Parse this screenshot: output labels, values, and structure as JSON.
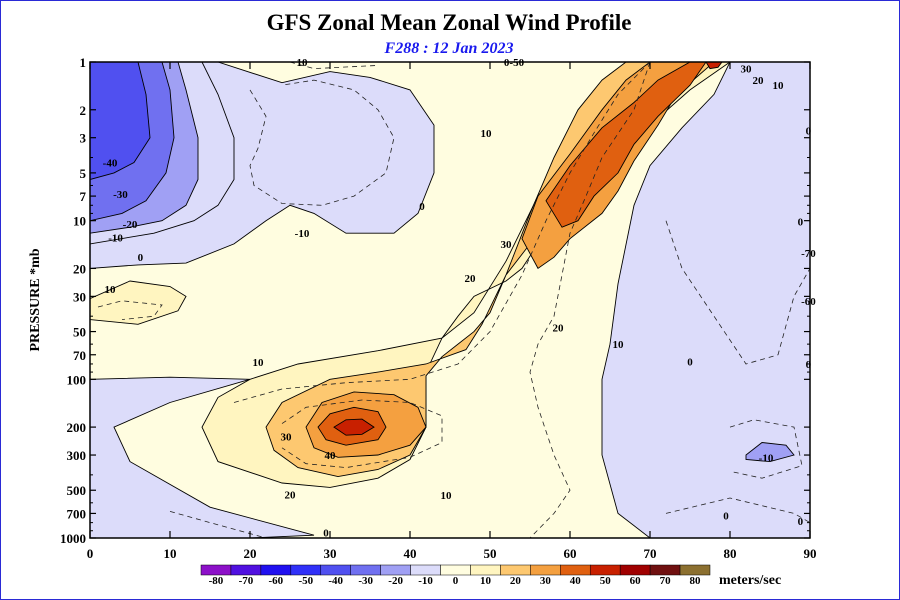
{
  "chart_data": {
    "type": "heatmap",
    "title": "GFS Zonal Mean Zonal Wind Profile",
    "subtitle": "F288 : 12 Jan 2023",
    "ylabel": "PRESSURE *mb",
    "xlim": [
      0,
      90
    ],
    "ylim": [
      1000,
      1
    ],
    "y_scale": "log",
    "x_ticks": [
      0,
      10,
      20,
      30,
      40,
      50,
      60,
      70,
      80,
      90
    ],
    "y_ticks": [
      1,
      2,
      3,
      5,
      7,
      10,
      20,
      30,
      50,
      70,
      100,
      200,
      300,
      500,
      700,
      1000
    ],
    "colorbar": {
      "unit": "meters/sec",
      "levels": [
        -80,
        -70,
        -60,
        -50,
        -40,
        -30,
        -20,
        -10,
        0,
        10,
        20,
        30,
        40,
        50,
        60,
        70,
        80
      ],
      "colors": [
        "#8c10c8",
        "#5010e0",
        "#2010f0",
        "#3030f8",
        "#5050f0",
        "#7070f0",
        "#a0a0f4",
        "#dcdcfa",
        "#fffde0",
        "#fff5c0",
        "#fdc870",
        "#f4a040",
        "#e06010",
        "#c82000",
        "#a00000",
        "#701010",
        "#8c7030"
      ]
    },
    "contour_labels": [
      {
        "text": "10",
        "x": 26.5,
        "y": 1
      },
      {
        "text": "0-50",
        "x": 53,
        "y": 1
      },
      {
        "text": "-40",
        "x": 2.5,
        "y": 4.3
      },
      {
        "text": "-30",
        "x": 3.8,
        "y": 6.8
      },
      {
        "text": "-20",
        "x": 5,
        "y": 10.5
      },
      {
        "text": "-10",
        "x": 3.2,
        "y": 12.8
      },
      {
        "text": "-10",
        "x": 26.5,
        "y": 12
      },
      {
        "text": "0",
        "x": 6.3,
        "y": 17
      },
      {
        "text": "0",
        "x": 41.5,
        "y": 8.1
      },
      {
        "text": "10",
        "x": 49.5,
        "y": 2.8
      },
      {
        "text": "10",
        "x": 2.5,
        "y": 27
      },
      {
        "text": "10",
        "x": 21,
        "y": 78
      },
      {
        "text": "10",
        "x": 66,
        "y": 60
      },
      {
        "text": "10",
        "x": 44.5,
        "y": 535
      },
      {
        "text": "20",
        "x": 47.5,
        "y": 23
      },
      {
        "text": "20",
        "x": 58.5,
        "y": 47
      },
      {
        "text": "20",
        "x": 25,
        "y": 530
      },
      {
        "text": "20",
        "x": 83.5,
        "y": 1.3
      },
      {
        "text": "30",
        "x": 52,
        "y": 14
      },
      {
        "text": "30",
        "x": 82,
        "y": 1.1
      },
      {
        "text": "30",
        "x": 24.5,
        "y": 230
      },
      {
        "text": "40",
        "x": 30,
        "y": 300
      },
      {
        "text": "10",
        "x": 86,
        "y": 1.4
      },
      {
        "text": "0",
        "x": 89.8,
        "y": 2.7
      },
      {
        "text": "0",
        "x": 88.8,
        "y": 10.1
      },
      {
        "text": "-70",
        "x": 89.8,
        "y": 16
      },
      {
        "text": "-60",
        "x": 89.8,
        "y": 32
      },
      {
        "text": "0",
        "x": 89.8,
        "y": 80
      },
      {
        "text": "0",
        "x": 75,
        "y": 77
      },
      {
        "text": "-10",
        "x": 84.5,
        "y": 310
      },
      {
        "text": "0",
        "x": 79.5,
        "y": 720
      },
      {
        "text": "0",
        "x": 88.8,
        "y": 780
      },
      {
        "text": "0",
        "x": 29.5,
        "y": 920
      }
    ]
  }
}
